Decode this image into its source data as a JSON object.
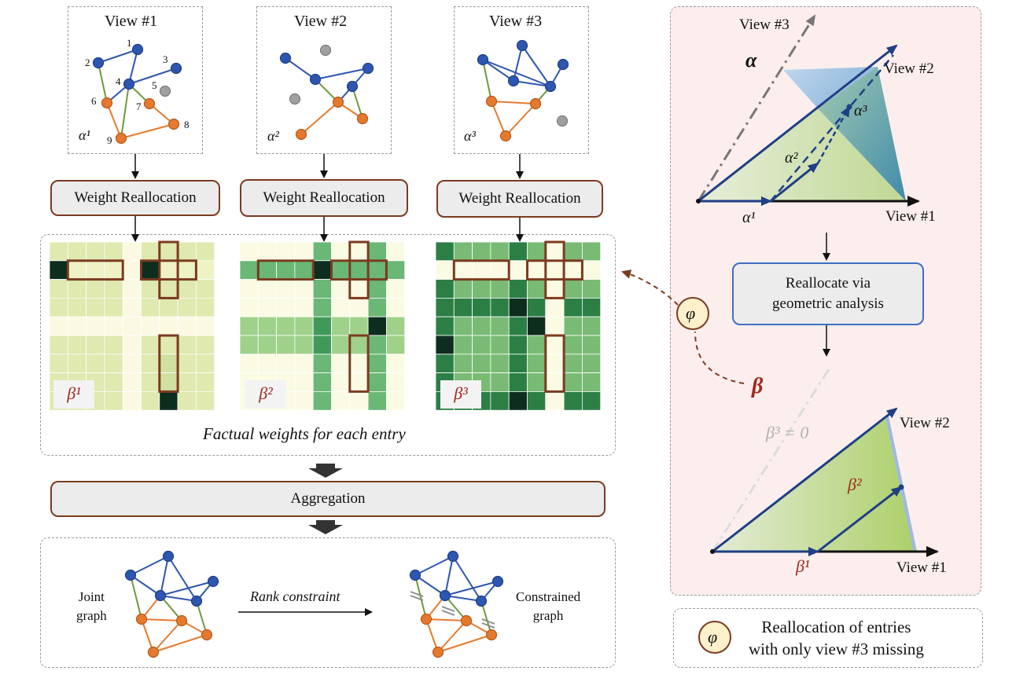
{
  "views": [
    {
      "title": "View #1",
      "alpha": "α¹",
      "beta": "β¹"
    },
    {
      "title": "View #2",
      "alpha": "α²",
      "beta": "β²"
    },
    {
      "title": "View #3",
      "alpha": "α³",
      "beta": "β³"
    }
  ],
  "node_numbers": [
    "1",
    "2",
    "3",
    "4",
    "5",
    "6",
    "7",
    "8",
    "9"
  ],
  "weight_reallocation_label": "Weight Reallocation",
  "factual_caption": "Factual weights for each entry",
  "aggregation_label": "Aggregation",
  "bottom": {
    "joint_graph": "Joint\ngraph",
    "rank_constraint": "Rank constraint",
    "constrained_graph": "Constrained\ngraph"
  },
  "right_panel": {
    "view1": "View #1",
    "view2": "View #2",
    "view3": "View #3",
    "alpha": "α",
    "a1": "α¹",
    "a2": "α²",
    "a3": "α³",
    "reallocate": "Reallocate via\ngeometric analysis",
    "beta": "β",
    "beta3_zero": "β³ = 0",
    "b1": "β¹",
    "b2": "β²",
    "phi": "φ"
  },
  "legend": {
    "phi": "φ",
    "text": "Reallocation of entries\nwith only view #3 missing"
  },
  "colors": {
    "blue_node": "#2e56b0",
    "orange_node": "#e57a2e",
    "gray_node": "#a0a0a0",
    "edge_blue": "#2e56b0",
    "edge_orange": "#e57a2e",
    "edge_green": "#6d9b3a",
    "brown": "#7b3b20",
    "pink_bg": "#fbeeed"
  }
}
